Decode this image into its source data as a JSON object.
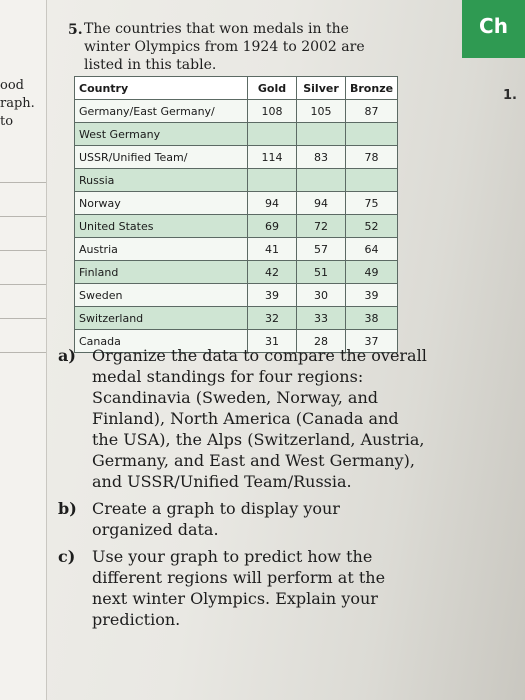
{
  "left_margin": {
    "fragments": [
      "ood",
      "raph.",
      "to"
    ]
  },
  "header_tab": "Ch",
  "margin_number": "1.",
  "question": {
    "number": "5.",
    "intro_lines": [
      "The countries that won medals in the",
      "winter Olympics from 1924 to 2002 are",
      "listed in this table."
    ]
  },
  "table": {
    "headers": {
      "country": "Country",
      "gold": "Gold",
      "silver": "Silver",
      "bronze": "Bronze"
    },
    "rows": [
      {
        "country": "Germany/East Germany/",
        "gold": "108",
        "silver": "105",
        "bronze": "87"
      },
      {
        "country": "West Germany",
        "gold": "",
        "silver": "",
        "bronze": ""
      },
      {
        "country": "USSR/Unified Team/",
        "gold": "114",
        "silver": "83",
        "bronze": "78"
      },
      {
        "country": "Russia",
        "gold": "",
        "silver": "",
        "bronze": ""
      },
      {
        "country": "Norway",
        "gold": "94",
        "silver": "94",
        "bronze": "75"
      },
      {
        "country": "United States",
        "gold": "69",
        "silver": "72",
        "bronze": "52"
      },
      {
        "country": "Austria",
        "gold": "41",
        "silver": "57",
        "bronze": "64"
      },
      {
        "country": "Finland",
        "gold": "42",
        "silver": "51",
        "bronze": "49"
      },
      {
        "country": "Sweden",
        "gold": "39",
        "silver": "30",
        "bronze": "39"
      },
      {
        "country": "Switzerland",
        "gold": "32",
        "silver": "33",
        "bronze": "38"
      },
      {
        "country": "Canada",
        "gold": "31",
        "silver": "28",
        "bronze": "37"
      }
    ]
  },
  "parts": [
    {
      "label": "a)",
      "lines": [
        "Organize the data to compare the overall",
        "medal standings for four regions:",
        "Scandinavia (Sweden, Norway, and",
        "Finland), North America (Canada and",
        "the USA), the Alps (Switzerland, Austria,",
        "Germany, and East and West Germany),",
        "and USSR/Unified Team/Russia."
      ]
    },
    {
      "label": "b)",
      "lines": [
        "Create a graph to display your",
        "organized data."
      ]
    },
    {
      "label": "c)",
      "lines": [
        "Use your graph to predict how the",
        "different regions will perform at the",
        "next winter Olympics. Explain your",
        "prediction."
      ]
    }
  ]
}
